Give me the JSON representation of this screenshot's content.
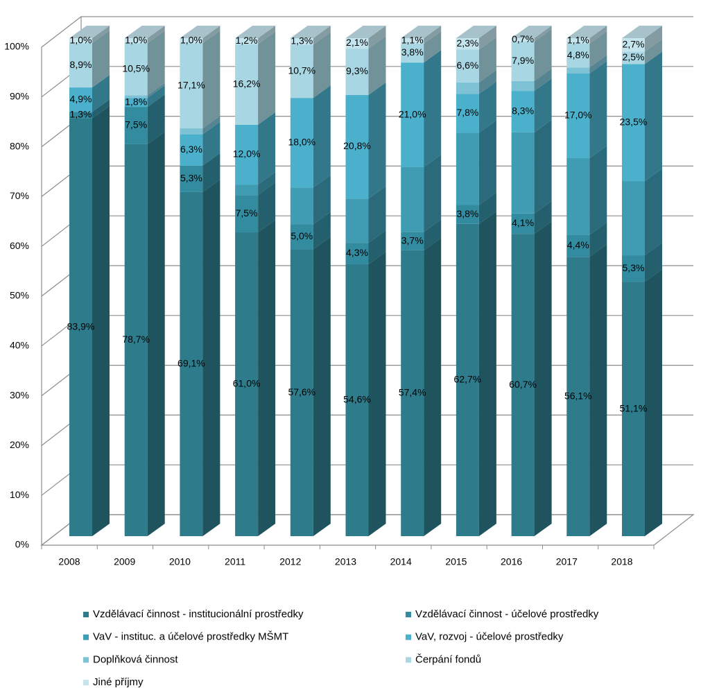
{
  "chart_data": {
    "type": "bar3d_stacked",
    "categories": [
      "2008",
      "2009",
      "2010",
      "2011",
      "2012",
      "2013",
      "2014",
      "2015",
      "2016",
      "2017",
      "2018"
    ],
    "ylim": [
      0,
      100
    ],
    "yticks": [
      {
        "value": 0,
        "label": "0%"
      },
      {
        "value": 10,
        "label": "10%"
      },
      {
        "value": 20,
        "label": "20%"
      },
      {
        "value": 30,
        "label": "30%"
      },
      {
        "value": 40,
        "label": "40%"
      },
      {
        "value": 50,
        "label": "50%"
      },
      {
        "value": 60,
        "label": "60%"
      },
      {
        "value": 70,
        "label": "70%"
      },
      {
        "value": 80,
        "label": "80%"
      },
      {
        "value": 90,
        "label": "90%"
      },
      {
        "value": 100,
        "label": "100%"
      }
    ],
    "grid": true,
    "legend": "bottom",
    "series": [
      {
        "name": "Vzdělávací činnost - institucionální prostředky",
        "color": "#2e7b8c",
        "values": [
          83.9,
          78.7,
          69.1,
          61.0,
          57.6,
          54.6,
          57.4,
          62.7,
          60.7,
          56.1,
          51.1
        ],
        "value_labels": [
          "83,9%",
          "78,7%",
          "69,1%",
          "61,0%",
          "57,6%",
          "54,6%",
          "57,4%",
          "62,7%",
          "60,7%",
          "56,1%",
          "51,1%"
        ]
      },
      {
        "name": "Vzdělávací činnost - účelové prostředky",
        "color": "#338b9f",
        "values": [
          1.3,
          7.5,
          5.3,
          7.5,
          5.0,
          4.3,
          3.7,
          3.8,
          4.1,
          4.4,
          5.3
        ],
        "value_labels": [
          "1,3%",
          "7,5%",
          "5,3%",
          "7,5%",
          "5,0%",
          "4,3%",
          "3,7%",
          "3,8%",
          "4,1%",
          "4,4%",
          "5,3%"
        ]
      },
      {
        "name": "VaV - instituc. a účelové prostředky MŠMT",
        "color": "#3f9cb3",
        "values": [
          0,
          0,
          0,
          2.1,
          7.4,
          8.9,
          13.0,
          14.5,
          16.3,
          15.4,
          14.9
        ],
        "value_labels": [
          null,
          null,
          null,
          null,
          null,
          null,
          null,
          null,
          null,
          null,
          null
        ]
      },
      {
        "name": "VaV, rozvoj - účelové prostředky",
        "color": "#4bb0cb",
        "values": [
          4.9,
          1.8,
          6.3,
          12.0,
          18.0,
          20.8,
          21.0,
          7.8,
          8.3,
          17.0,
          23.5
        ],
        "value_labels": [
          "4,9%",
          "1,8%",
          "6,3%",
          "12,0%",
          "18,0%",
          "20,8%",
          "21,0%",
          "7,8%",
          "8,3%",
          "17,0%",
          "23,5%"
        ]
      },
      {
        "name": "Doplňková činnost",
        "color": "#7ec2d5",
        "values": [
          0,
          0.5,
          1.2,
          0,
          0,
          0,
          0,
          2.3,
          2.0,
          1.2,
          0
        ],
        "value_labels": [
          null,
          null,
          null,
          null,
          null,
          null,
          null,
          null,
          null,
          null,
          null
        ]
      },
      {
        "name": "Čerpání fondů",
        "color": "#a8d6e3",
        "values": [
          8.9,
          10.5,
          17.1,
          16.2,
          10.7,
          9.3,
          3.8,
          6.6,
          7.9,
          4.8,
          2.5
        ],
        "value_labels": [
          "8,9%",
          "10,5%",
          "17,1%",
          "16,2%",
          "10,7%",
          "9,3%",
          "3,8%",
          "6,6%",
          "7,9%",
          "4,8%",
          "2,5%"
        ]
      },
      {
        "name": "Jiné příjmy",
        "color": "#c4e4ee",
        "values": [
          1.0,
          1.0,
          1.0,
          1.2,
          1.3,
          2.1,
          1.1,
          2.3,
          0.7,
          1.1,
          2.7
        ],
        "value_labels": [
          "1,0%",
          "1,0%",
          "1,0%",
          "1,2%",
          "1,3%",
          "2,1%",
          "1,1%",
          "2,3%",
          "0,7%",
          "1,1%",
          "2,7%"
        ]
      }
    ]
  }
}
